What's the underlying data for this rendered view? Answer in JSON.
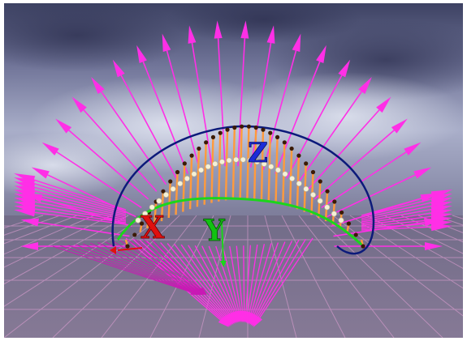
{
  "scene": {
    "axis_labels": {
      "x": "X",
      "y": "Y",
      "z": "Z"
    },
    "colors": {
      "sky_top": "#3a3f63",
      "sky_mid": "#7c7fa3",
      "sky_light": "#b9bfd6",
      "floor": "#7a6f8c",
      "floor_grid": "#e6a3d8",
      "arrow": "#ff2fe6",
      "arrow_dark": "#c81ab4",
      "orange_arrow": "#ff9a3c",
      "curve_blue": "#0c1a7a",
      "curve_green": "#1bd61b",
      "x_label": "#e01010",
      "y_label": "#12c212",
      "z_label": "#1a2bd8",
      "pearl": "#f5f1d8"
    }
  }
}
